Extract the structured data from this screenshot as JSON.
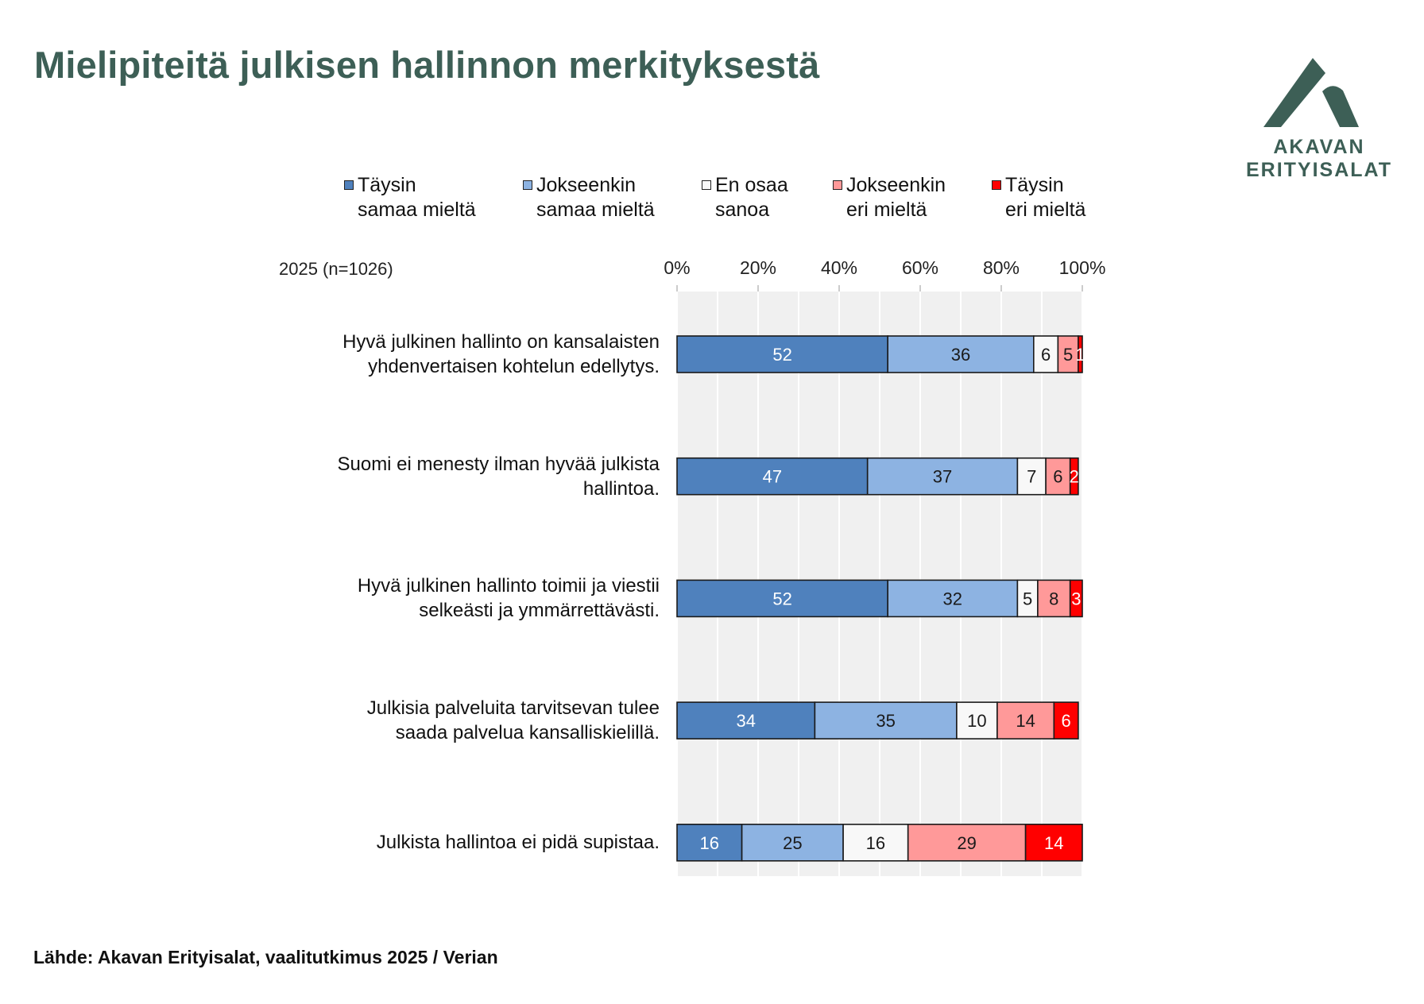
{
  "header": {
    "title": "Mielipiteitä julkisen hallinnon merkityksestä"
  },
  "logo": {
    "line1": "AKAVAN",
    "line2": "ERITYISALAT",
    "color": "#3d5f56"
  },
  "footer": {
    "source": "Lähde: Akavan Erityisalat, vaalitutkimus 2025 / Verian"
  },
  "chart_data": {
    "type": "bar",
    "orientation": "horizontal",
    "stacked": true,
    "percent": true,
    "title": "Mielipiteitä julkisen hallinnon merkityksestä",
    "subtitle": "2025 (n=1026)",
    "xlabel": "",
    "ylabel": "",
    "xlim": [
      0,
      100
    ],
    "xticks": [
      "0%",
      "20%",
      "40%",
      "60%",
      "80%",
      "100%"
    ],
    "grid": true,
    "legend_position": "top",
    "categories": [
      [
        "Hyvä julkinen hallinto on kansalaisten",
        "yhdenvertaisen kohtelun edellytys."
      ],
      [
        "Suomi ei menesty ilman hyvää julkista",
        "hallintoa."
      ],
      [
        "Hyvä julkinen hallinto toimii ja viestii",
        "selkeästi ja ymmärrettävästi."
      ],
      [
        "Julkisia palveluita tarvitsevan tulee",
        "saada palvelua kansalliskielillä."
      ],
      [
        "Julkista hallintoa ei pidä supistaa."
      ]
    ],
    "series": [
      {
        "name": "Täysin\nsamaa mieltä",
        "color": "#4f81bd",
        "label_color": "#ffffff",
        "values": [
          52,
          47,
          52,
          34,
          16
        ]
      },
      {
        "name": "Jokseenkin\nsamaa mieltä",
        "color": "#8db3e2",
        "label_color": "#1a1a1a",
        "values": [
          36,
          37,
          32,
          35,
          25
        ]
      },
      {
        "name": "En osaa\nsanoa",
        "color": "#f8f8f8",
        "label_color": "#1a1a1a",
        "values": [
          6,
          7,
          5,
          10,
          16
        ]
      },
      {
        "name": "Jokseenkin\neri mieltä",
        "color": "#ff9999",
        "label_color": "#1a1a1a",
        "values": [
          5,
          6,
          8,
          14,
          29
        ]
      },
      {
        "name": "Täysin\neri mieltä",
        "color": "#ff0000",
        "label_color": "#ffffff",
        "values": [
          1,
          2,
          3,
          6,
          14
        ]
      }
    ]
  }
}
